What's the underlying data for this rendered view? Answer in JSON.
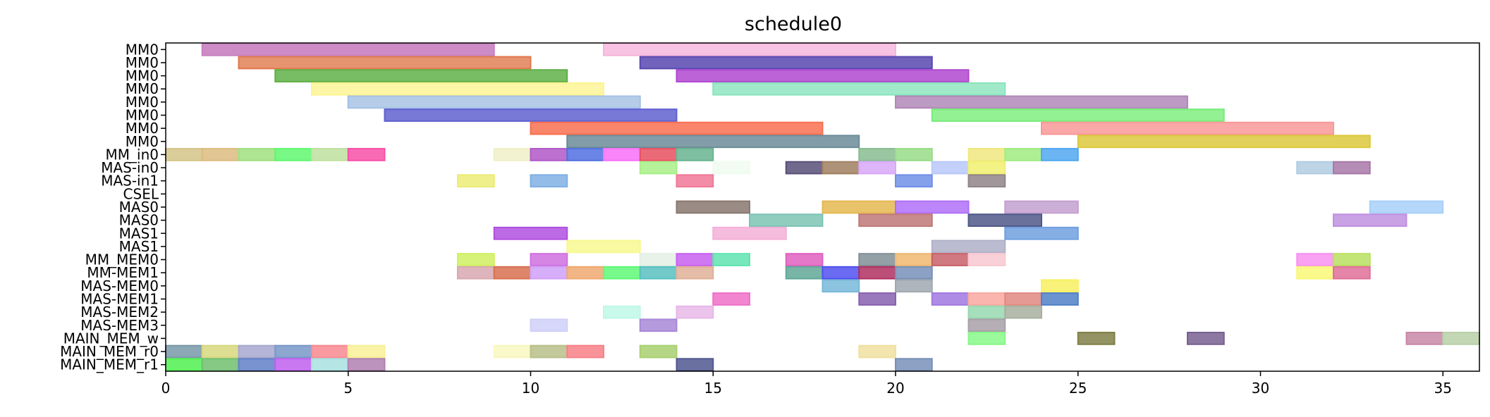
{
  "chart_data": {
    "type": "gantt",
    "title": "schedule0",
    "xlim": [
      0,
      36
    ],
    "x_ticks": [
      0,
      5,
      10,
      15,
      20,
      25,
      30,
      35
    ],
    "grid": false,
    "rows": [
      "MM0",
      "MM0",
      "MM0",
      "MM0",
      "MM0",
      "MM0",
      "MM0",
      "MM0",
      "MM_in0",
      "MAS-in0",
      "MAS-in1",
      "CSEL",
      "MAS0",
      "MAS0",
      "MAS1",
      "MAS1",
      "MM_MEM0",
      "MM-MEM1",
      "MAS-MEM0",
      "MAS-MEM1",
      "MAS-MEM2",
      "MAS-MEM3",
      "MAIN_MEM_w",
      "MAIN_MEM_r0",
      "MAIN_MEM_r1"
    ],
    "tasks": [
      {
        "row": 0,
        "start": 1,
        "end": 9,
        "color": "#c880c0",
        "alpha": 0.9
      },
      {
        "row": 0,
        "start": 12,
        "end": 20,
        "color": "#f6b4dc",
        "alpha": 0.8
      },
      {
        "row": 1,
        "start": 2,
        "end": 10,
        "color": "#e0784c",
        "alpha": 0.8
      },
      {
        "row": 1,
        "start": 13,
        "end": 21,
        "color": "#5848b0",
        "alpha": 0.85
      },
      {
        "row": 2,
        "start": 3,
        "end": 11,
        "color": "#60b048",
        "alpha": 0.85
      },
      {
        "row": 2,
        "start": 14,
        "end": 22,
        "color": "#b048d0",
        "alpha": 0.85
      },
      {
        "row": 3,
        "start": 4,
        "end": 12,
        "color": "#fcf490",
        "alpha": 0.8
      },
      {
        "row": 3,
        "start": 15,
        "end": 23,
        "color": "#88e4bc",
        "alpha": 0.8
      },
      {
        "row": 4,
        "start": 5,
        "end": 13,
        "color": "#a4c0e4",
        "alpha": 0.8
      },
      {
        "row": 4,
        "start": 20,
        "end": 28,
        "color": "#b088b8",
        "alpha": 0.85
      },
      {
        "row": 5,
        "start": 6,
        "end": 14,
        "color": "#6060d0",
        "alpha": 0.85
      },
      {
        "row": 5,
        "start": 21,
        "end": 29,
        "color": "#78ec78",
        "alpha": 0.8
      },
      {
        "row": 6,
        "start": 10,
        "end": 18,
        "color": "#f87050",
        "alpha": 0.85
      },
      {
        "row": 6,
        "start": 24,
        "end": 32,
        "color": "#f89898",
        "alpha": 0.85
      },
      {
        "row": 7,
        "start": 11,
        "end": 19,
        "color": "#6c8c98",
        "alpha": 0.85
      },
      {
        "row": 7,
        "start": 25,
        "end": 33,
        "color": "#dcc83c",
        "alpha": 0.85
      },
      {
        "row": 8,
        "start": 0,
        "end": 1,
        "color": "#d4c488",
        "alpha": 0.85
      },
      {
        "row": 8,
        "start": 1,
        "end": 2,
        "color": "#dcbc80",
        "alpha": 0.85
      },
      {
        "row": 8,
        "start": 2,
        "end": 3,
        "color": "#a0e080",
        "alpha": 0.85
      },
      {
        "row": 8,
        "start": 3,
        "end": 4,
        "color": "#60f870",
        "alpha": 0.85
      },
      {
        "row": 8,
        "start": 4,
        "end": 5,
        "color": "#c0e0a0",
        "alpha": 0.85
      },
      {
        "row": 8,
        "start": 5,
        "end": 6,
        "color": "#f850a8",
        "alpha": 0.85
      },
      {
        "row": 8,
        "start": 9,
        "end": 10,
        "color": "#f0f0c8",
        "alpha": 0.85
      },
      {
        "row": 8,
        "start": 10,
        "end": 11,
        "color": "#b058c8",
        "alpha": 0.85
      },
      {
        "row": 8,
        "start": 11,
        "end": 12,
        "color": "#5070e0",
        "alpha": 0.85
      },
      {
        "row": 8,
        "start": 12,
        "end": 13,
        "color": "#f870f8",
        "alpha": 0.85
      },
      {
        "row": 8,
        "start": 13,
        "end": 14,
        "color": "#e85060",
        "alpha": 0.85
      },
      {
        "row": 8,
        "start": 14,
        "end": 15,
        "color": "#68b490",
        "alpha": 0.85
      },
      {
        "row": 8,
        "start": 19,
        "end": 20,
        "color": "#88bc90",
        "alpha": 0.85
      },
      {
        "row": 8,
        "start": 20,
        "end": 21,
        "color": "#98dc88",
        "alpha": 0.85
      },
      {
        "row": 8,
        "start": 22,
        "end": 23,
        "color": "#f0e880",
        "alpha": 0.85
      },
      {
        "row": 8,
        "start": 23,
        "end": 24,
        "color": "#a0ec80",
        "alpha": 0.85
      },
      {
        "row": 8,
        "start": 24,
        "end": 25,
        "color": "#50a8f0",
        "alpha": 0.85
      },
      {
        "row": 9,
        "start": 13,
        "end": 14,
        "color": "#a8f088",
        "alpha": 0.85
      },
      {
        "row": 9,
        "start": 15,
        "end": 16,
        "color": "#f0fcf0",
        "alpha": 0.85
      },
      {
        "row": 9,
        "start": 17,
        "end": 18,
        "color": "#585078",
        "alpha": 0.85
      },
      {
        "row": 9,
        "start": 18,
        "end": 19,
        "color": "#a08060",
        "alpha": 0.85
      },
      {
        "row": 9,
        "start": 19,
        "end": 20,
        "color": "#d8a8f8",
        "alpha": 0.85
      },
      {
        "row": 9,
        "start": 21,
        "end": 22,
        "color": "#b8c8f8",
        "alpha": 0.85
      },
      {
        "row": 9,
        "start": 22,
        "end": 23,
        "color": "#f0f070",
        "alpha": 0.85
      },
      {
        "row": 9,
        "start": 31,
        "end": 32,
        "color": "#b0cce0",
        "alpha": 0.85
      },
      {
        "row": 9,
        "start": 32,
        "end": 33,
        "color": "#a878a8",
        "alpha": 0.85
      },
      {
        "row": 10,
        "start": 8,
        "end": 9,
        "color": "#ecec78",
        "alpha": 0.85
      },
      {
        "row": 10,
        "start": 10,
        "end": 11,
        "color": "#80b0e4",
        "alpha": 0.85
      },
      {
        "row": 10,
        "start": 14,
        "end": 15,
        "color": "#f07898",
        "alpha": 0.85
      },
      {
        "row": 10,
        "start": 20,
        "end": 21,
        "color": "#7090e8",
        "alpha": 0.85
      },
      {
        "row": 10,
        "start": 22,
        "end": 23,
        "color": "#908488",
        "alpha": 0.85
      },
      {
        "row": 12,
        "start": 14,
        "end": 16,
        "color": "#887870",
        "alpha": 0.85
      },
      {
        "row": 12,
        "start": 18,
        "end": 20,
        "color": "#e4b850",
        "alpha": 0.85
      },
      {
        "row": 12,
        "start": 20,
        "end": 22,
        "color": "#b070f8",
        "alpha": 0.85
      },
      {
        "row": 12,
        "start": 23,
        "end": 25,
        "color": "#c4a0d0",
        "alpha": 0.85
      },
      {
        "row": 12,
        "start": 33,
        "end": 35,
        "color": "#a8d0f8",
        "alpha": 0.85
      },
      {
        "row": 13,
        "start": 16,
        "end": 18,
        "color": "#7cc4b4",
        "alpha": 0.85
      },
      {
        "row": 13,
        "start": 19,
        "end": 21,
        "color": "#c07878",
        "alpha": 0.85
      },
      {
        "row": 13,
        "start": 22,
        "end": 24,
        "color": "#505888",
        "alpha": 0.85
      },
      {
        "row": 13,
        "start": 32,
        "end": 34,
        "color": "#c090e0",
        "alpha": 0.85
      },
      {
        "row": 14,
        "start": 9,
        "end": 11,
        "color": "#b050e0",
        "alpha": 0.85
      },
      {
        "row": 14,
        "start": 15,
        "end": 17,
        "color": "#f4b0d8",
        "alpha": 0.85
      },
      {
        "row": 14,
        "start": 23,
        "end": 25,
        "color": "#70a0e0",
        "alpha": 0.85
      },
      {
        "row": 15,
        "start": 11,
        "end": 13,
        "color": "#f8f890",
        "alpha": 0.85
      },
      {
        "row": 15,
        "start": 21,
        "end": 23,
        "color": "#b0b0c8",
        "alpha": 0.85
      },
      {
        "row": 16,
        "start": 8,
        "end": 9,
        "color": "#d0f060",
        "alpha": 0.85
      },
      {
        "row": 16,
        "start": 10,
        "end": 11,
        "color": "#d070e0",
        "alpha": 0.85
      },
      {
        "row": 16,
        "start": 13,
        "end": 14,
        "color": "#e4f0e4",
        "alpha": 0.85
      },
      {
        "row": 16,
        "start": 14,
        "end": 15,
        "color": "#c860f0",
        "alpha": 0.85
      },
      {
        "row": 16,
        "start": 15,
        "end": 16,
        "color": "#60e4b0",
        "alpha": 0.85
      },
      {
        "row": 16,
        "start": 17,
        "end": 18,
        "color": "#e060c0",
        "alpha": 0.85
      },
      {
        "row": 16,
        "start": 19,
        "end": 20,
        "color": "#809098",
        "alpha": 0.85
      },
      {
        "row": 16,
        "start": 20,
        "end": 21,
        "color": "#f0b870",
        "alpha": 0.85
      },
      {
        "row": 16,
        "start": 21,
        "end": 22,
        "color": "#c86068",
        "alpha": 0.85
      },
      {
        "row": 16,
        "start": 22,
        "end": 23,
        "color": "#f8c8d0",
        "alpha": 0.85
      },
      {
        "row": 16,
        "start": 31,
        "end": 32,
        "color": "#f890f0",
        "alpha": 0.85
      },
      {
        "row": 16,
        "start": 32,
        "end": 33,
        "color": "#b8e060",
        "alpha": 0.85
      },
      {
        "row": 17,
        "start": 8,
        "end": 9,
        "color": "#d8a8b0",
        "alpha": 0.85
      },
      {
        "row": 17,
        "start": 9,
        "end": 10,
        "color": "#d87050",
        "alpha": 0.85
      },
      {
        "row": 17,
        "start": 10,
        "end": 11,
        "color": "#d0a0f8",
        "alpha": 0.85
      },
      {
        "row": 17,
        "start": 11,
        "end": 12,
        "color": "#f0a870",
        "alpha": 0.85
      },
      {
        "row": 17,
        "start": 12,
        "end": 13,
        "color": "#60f878",
        "alpha": 0.85
      },
      {
        "row": 17,
        "start": 13,
        "end": 14,
        "color": "#58c0c0",
        "alpha": 0.85
      },
      {
        "row": 17,
        "start": 14,
        "end": 15,
        "color": "#e0b098",
        "alpha": 0.85
      },
      {
        "row": 17,
        "start": 17,
        "end": 18,
        "color": "#60a898",
        "alpha": 0.85
      },
      {
        "row": 17,
        "start": 18,
        "end": 19,
        "color": "#5050f0",
        "alpha": 0.85
      },
      {
        "row": 17,
        "start": 19,
        "end": 20,
        "color": "#b03060",
        "alpha": 0.85
      },
      {
        "row": 17,
        "start": 20,
        "end": 21,
        "color": "#7890b8",
        "alpha": 0.85
      },
      {
        "row": 17,
        "start": 31,
        "end": 32,
        "color": "#f8f878",
        "alpha": 0.85
      },
      {
        "row": 17,
        "start": 32,
        "end": 33,
        "color": "#e07098",
        "alpha": 0.85
      },
      {
        "row": 18,
        "start": 18,
        "end": 19,
        "color": "#78b8d8",
        "alpha": 0.85
      },
      {
        "row": 18,
        "start": 20,
        "end": 21,
        "color": "#a0a8b0",
        "alpha": 0.85
      },
      {
        "row": 18,
        "start": 24,
        "end": 25,
        "color": "#f8f060",
        "alpha": 0.85
      },
      {
        "row": 19,
        "start": 15,
        "end": 16,
        "color": "#f070c8",
        "alpha": 0.85
      },
      {
        "row": 19,
        "start": 19,
        "end": 20,
        "color": "#8860b0",
        "alpha": 0.85
      },
      {
        "row": 19,
        "start": 21,
        "end": 22,
        "color": "#a078e0",
        "alpha": 0.85
      },
      {
        "row": 19,
        "start": 22,
        "end": 23,
        "color": "#f8a8a0",
        "alpha": 0.85
      },
      {
        "row": 19,
        "start": 23,
        "end": 24,
        "color": "#e08880",
        "alpha": 0.85
      },
      {
        "row": 19,
        "start": 24,
        "end": 25,
        "color": "#5080c8",
        "alpha": 0.85
      },
      {
        "row": 20,
        "start": 12,
        "end": 13,
        "color": "#c0f8e8",
        "alpha": 0.85
      },
      {
        "row": 20,
        "start": 14,
        "end": 15,
        "color": "#e8b8e8",
        "alpha": 0.85
      },
      {
        "row": 20,
        "start": 22,
        "end": 23,
        "color": "#98d8b0",
        "alpha": 0.85
      },
      {
        "row": 20,
        "start": 23,
        "end": 24,
        "color": "#a8b0a0",
        "alpha": 0.85
      },
      {
        "row": 21,
        "start": 10,
        "end": 11,
        "color": "#d0d0f8",
        "alpha": 0.85
      },
      {
        "row": 21,
        "start": 13,
        "end": 14,
        "color": "#a888d8",
        "alpha": 0.85
      },
      {
        "row": 21,
        "start": 22,
        "end": 23,
        "color": "#a8a0a8",
        "alpha": 0.85
      },
      {
        "row": 22,
        "start": 22,
        "end": 23,
        "color": "#88f888",
        "alpha": 0.85
      },
      {
        "row": 22,
        "start": 25,
        "end": 26,
        "color": "#808048",
        "alpha": 0.85
      },
      {
        "row": 22,
        "start": 28,
        "end": 29,
        "color": "#786090",
        "alpha": 0.85
      },
      {
        "row": 22,
        "start": 34,
        "end": 35,
        "color": "#c888a8",
        "alpha": 0.85
      },
      {
        "row": 22,
        "start": 35,
        "end": 36,
        "color": "#b8d0a8",
        "alpha": 0.85
      },
      {
        "row": 23,
        "start": 0,
        "end": 1,
        "color": "#7898a8",
        "alpha": 0.85
      },
      {
        "row": 23,
        "start": 1,
        "end": 2,
        "color": "#d8d880",
        "alpha": 0.85
      },
      {
        "row": 23,
        "start": 2,
        "end": 3,
        "color": "#a8a8d0",
        "alpha": 0.85
      },
      {
        "row": 23,
        "start": 3,
        "end": 4,
        "color": "#7898c8",
        "alpha": 0.85
      },
      {
        "row": 23,
        "start": 4,
        "end": 5,
        "color": "#f88890",
        "alpha": 0.85
      },
      {
        "row": 23,
        "start": 5,
        "end": 6,
        "color": "#f8f098",
        "alpha": 0.85
      },
      {
        "row": 23,
        "start": 9,
        "end": 10,
        "color": "#f8f8c0",
        "alpha": 0.85
      },
      {
        "row": 23,
        "start": 10,
        "end": 11,
        "color": "#b8c088",
        "alpha": 0.85
      },
      {
        "row": 23,
        "start": 11,
        "end": 12,
        "color": "#f88088",
        "alpha": 0.85
      },
      {
        "row": 23,
        "start": 13,
        "end": 14,
        "color": "#a8d070",
        "alpha": 0.85
      },
      {
        "row": 23,
        "start": 19,
        "end": 20,
        "color": "#f0e0a0",
        "alpha": 0.85
      },
      {
        "row": 24,
        "start": 0,
        "end": 1,
        "color": "#50f050",
        "alpha": 0.85
      },
      {
        "row": 24,
        "start": 1,
        "end": 2,
        "color": "#70c070",
        "alpha": 0.85
      },
      {
        "row": 24,
        "start": 2,
        "end": 3,
        "color": "#6080c8",
        "alpha": 0.85
      },
      {
        "row": 24,
        "start": 3,
        "end": 4,
        "color": "#c060f0",
        "alpha": 0.85
      },
      {
        "row": 24,
        "start": 4,
        "end": 5,
        "color": "#a8e0e0",
        "alpha": 0.85
      },
      {
        "row": 24,
        "start": 5,
        "end": 6,
        "color": "#b080b0",
        "alpha": 0.85
      },
      {
        "row": 24,
        "start": 14,
        "end": 15,
        "color": "#505890",
        "alpha": 0.85
      },
      {
        "row": 24,
        "start": 20,
        "end": 21,
        "color": "#7890b8",
        "alpha": 0.85
      }
    ]
  }
}
